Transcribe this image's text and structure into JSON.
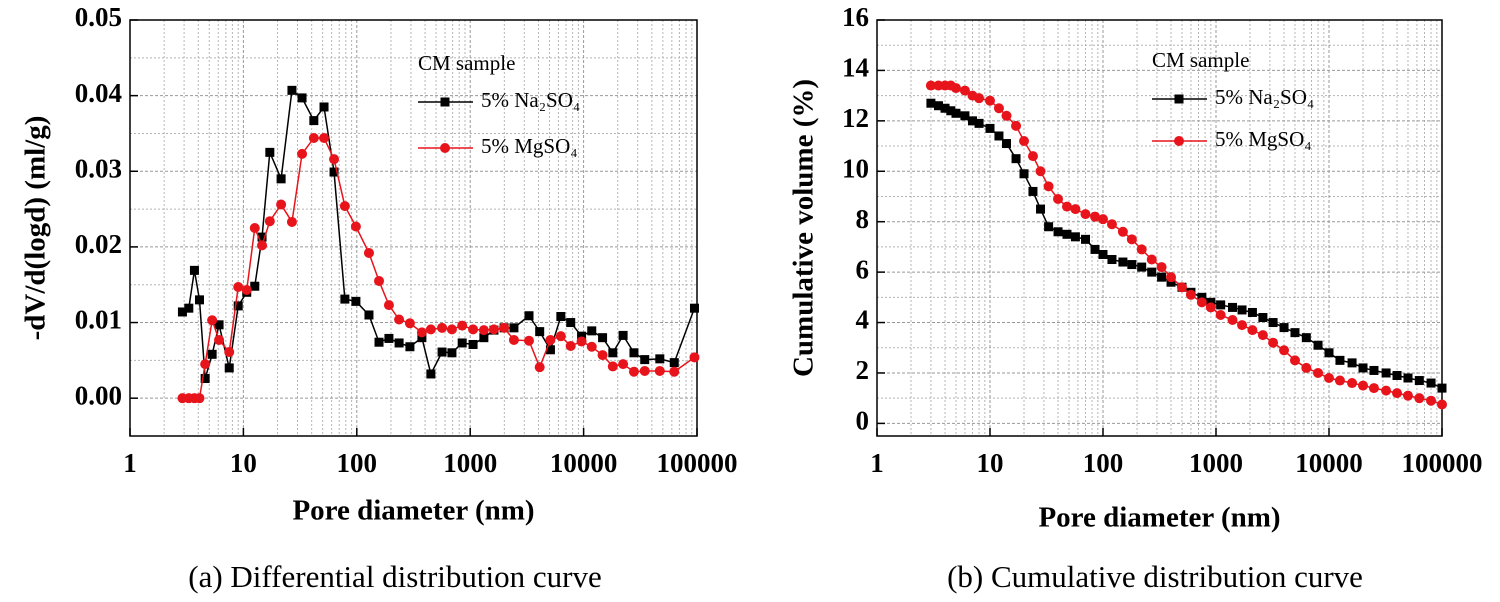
{
  "chart_data": [
    {
      "type": "line",
      "xlog": true,
      "grid": true,
      "caption": "(a) Differential distribution curve",
      "xlabel": "Pore diameter (nm)",
      "ylabel": "-dV/d(logd) (ml/g)",
      "legend_title": "CM sample",
      "xlim": [
        1,
        100000
      ],
      "xticks": [
        1,
        10,
        100,
        1000,
        10000,
        100000
      ],
      "ylim": [
        -0.005,
        0.05
      ],
      "yticks": [
        {
          "value": 0,
          "label": "0.00"
        },
        0.01,
        0.02,
        0.03,
        0.04,
        0.05
      ],
      "x": [
        2.9,
        3.3,
        3.7,
        4.1,
        4.6,
        5.3,
        6.1,
        7.5,
        9,
        10.7,
        12.6,
        14.6,
        17.1,
        21.5,
        26.8,
        32.9,
        41.8,
        51.4,
        63,
        78.5,
        98.2,
        128,
        157,
        192,
        236,
        294,
        375,
        450,
        565,
        690,
        850,
        1060,
        1320,
        1620,
        1990,
        2430,
        3300,
        4100,
        5100,
        6300,
        7700,
        9600,
        11800,
        14700,
        18100,
        22300,
        27800,
        34600,
        47000,
        63000,
        95000
      ],
      "series": [
        {
          "name": "5% Na₂SO₄",
          "color": "#000000",
          "marker": "square",
          "values": [
            0.0114,
            0.0119,
            0.0169,
            0.013,
            0.0026,
            0.0058,
            0.0097,
            0.004,
            0.0122,
            0.014,
            0.0148,
            0.0213,
            0.0325,
            0.029,
            0.0407,
            0.0397,
            0.0367,
            0.0385,
            0.0299,
            0.0131,
            0.0128,
            0.011,
            0.0074,
            0.0079,
            0.0073,
            0.0068,
            0.008,
            0.0032,
            0.0061,
            0.006,
            0.0073,
            0.0071,
            0.008,
            0.009,
            0.0093,
            0.0093,
            0.0109,
            0.0088,
            0.0064,
            0.0108,
            0.01,
            0.0082,
            0.0089,
            0.008,
            0.006,
            0.0083,
            0.006,
            0.0051,
            0.0052,
            0.0047,
            0.0119
          ]
        },
        {
          "name": "5% MgSO₄",
          "color": "#e8141b",
          "marker": "circle",
          "values": [
            0,
            0,
            0,
            0,
            0.0045,
            0.0103,
            0.0077,
            0.0061,
            0.0147,
            0.0143,
            0.0225,
            0.0202,
            0.0234,
            0.0256,
            0.0233,
            0.0323,
            0.0344,
            0.0344,
            0.0316,
            0.0254,
            0.0227,
            0.0192,
            0.0155,
            0.0123,
            0.0104,
            0.0099,
            0.0087,
            0.0091,
            0.0093,
            0.0091,
            0.0096,
            0.0091,
            0.009,
            0.0091,
            0.0093,
            0.0077,
            0.0076,
            0.0041,
            0.0077,
            0.0082,
            0.0069,
            0.0075,
            0.0068,
            0.0057,
            0.0042,
            0.0045,
            0.0035,
            0.0036,
            0.0036,
            0.0035,
            0.0054
          ]
        }
      ]
    },
    {
      "type": "line",
      "xlog": true,
      "grid": true,
      "caption": "(b) Cumulative distribution curve",
      "xlabel": "Pore diameter (nm)",
      "ylabel": "Cumulative volume (%)",
      "legend_title": "CM sample",
      "xlim": [
        1,
        100000
      ],
      "xticks": [
        1,
        10,
        100,
        1000,
        10000,
        100000
      ],
      "ylim": [
        -0.5,
        16
      ],
      "yticks": [
        0,
        2,
        4,
        6,
        8,
        10,
        12,
        14,
        16
      ],
      "x": [
        3,
        3.5,
        4,
        4.5,
        5,
        6,
        7,
        8,
        10,
        12,
        14,
        17,
        20,
        24,
        28,
        33,
        40,
        48,
        57,
        70,
        85,
        100,
        120,
        150,
        180,
        220,
        270,
        330,
        400,
        500,
        600,
        750,
        900,
        1100,
        1400,
        1700,
        2100,
        2600,
        3200,
        4000,
        5000,
        6300,
        8000,
        10000,
        12500,
        16000,
        20000,
        25000,
        32000,
        40000,
        50000,
        63000,
        80000,
        100000
      ],
      "series": [
        {
          "name": "5% Na₂SO₄",
          "color": "#000000",
          "marker": "square",
          "values": [
            12.7,
            12.6,
            12.5,
            12.4,
            12.3,
            12.2,
            12,
            11.9,
            11.7,
            11.4,
            11.1,
            10.5,
            9.9,
            9.2,
            8.5,
            7.8,
            7.6,
            7.5,
            7.4,
            7.3,
            6.9,
            6.7,
            6.5,
            6.4,
            6.3,
            6.2,
            6,
            5.8,
            5.6,
            5.4,
            5.2,
            5,
            4.8,
            4.7,
            4.6,
            4.5,
            4.4,
            4.2,
            4,
            3.8,
            3.6,
            3.4,
            3.1,
            2.8,
            2.5,
            2.4,
            2.2,
            2.1,
            2,
            1.9,
            1.8,
            1.7,
            1.6,
            1.4
          ]
        },
        {
          "name": "5% MgSO₄",
          "color": "#e8141b",
          "marker": "circle",
          "values": [
            13.4,
            13.4,
            13.4,
            13.4,
            13.3,
            13.2,
            13,
            12.9,
            12.8,
            12.5,
            12.2,
            11.8,
            11.2,
            10.6,
            10,
            9.4,
            8.9,
            8.6,
            8.5,
            8.3,
            8.2,
            8.1,
            7.9,
            7.6,
            7.3,
            6.9,
            6.5,
            6.2,
            5.8,
            5.4,
            5.1,
            4.8,
            4.6,
            4.3,
            4.1,
            3.9,
            3.7,
            3.5,
            3.2,
            2.9,
            2.5,
            2.2,
            2,
            1.8,
            1.7,
            1.6,
            1.5,
            1.4,
            1.3,
            1.2,
            1.1,
            1,
            0.9,
            0.75
          ]
        }
      ]
    }
  ]
}
